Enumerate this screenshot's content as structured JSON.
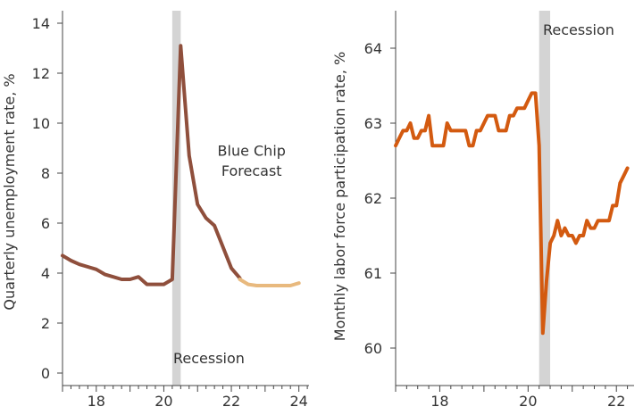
{
  "chart_data": [
    {
      "type": "line",
      "ylabel": "Quarterly unemployment rate, %",
      "xlim": [
        17,
        24.3
      ],
      "ylim": [
        -0.5,
        14.5
      ],
      "xticks": [
        18,
        20,
        22,
        24
      ],
      "yticks": [
        0,
        2,
        4,
        6,
        8,
        10,
        12,
        14
      ],
      "grid": false,
      "recession_band": {
        "x0": 20.25,
        "x1": 20.5,
        "label": "Recession",
        "color": "#d4d4d4"
      },
      "annotations": [
        {
          "text": "Blue Chip",
          "x": 22.6,
          "y": 8.7
        },
        {
          "text": "Forecast",
          "x": 22.6,
          "y": 7.9
        }
      ],
      "series": [
        {
          "color": "#8f4f3c",
          "x": [
            17.0,
            17.25,
            17.5,
            17.75,
            18.0,
            18.25,
            18.5,
            18.75,
            19.0,
            19.25,
            19.5,
            19.75,
            20.0,
            20.25,
            20.5,
            20.75,
            21.0,
            21.25,
            21.5,
            21.75,
            22.0,
            22.25
          ],
          "y": [
            4.7,
            4.5,
            4.35,
            4.25,
            4.15,
            3.95,
            3.85,
            3.75,
            3.75,
            3.85,
            3.55,
            3.55,
            3.55,
            3.75,
            13.1,
            8.7,
            6.75,
            6.2,
            5.9,
            5.05,
            4.2,
            3.8
          ]
        },
        {
          "color": "#e8b97e",
          "x": [
            22.25,
            22.5,
            22.75,
            23.0,
            23.25,
            23.5,
            23.75,
            24.0
          ],
          "y": [
            3.75,
            3.55,
            3.5,
            3.5,
            3.5,
            3.5,
            3.5,
            3.6
          ]
        }
      ]
    },
    {
      "type": "line",
      "ylabel": "Monthly labor force participation rate, %",
      "xlim": [
        17,
        22.4
      ],
      "ylim": [
        59.5,
        64.5
      ],
      "xticks": [
        18,
        20,
        22
      ],
      "yticks": [
        60,
        61,
        62,
        63,
        64
      ],
      "grid": false,
      "recession_band": {
        "x0": 20.25,
        "x1": 20.5,
        "label": "Recession",
        "color": "#d4d4d4"
      },
      "series": [
        {
          "color": "#d35a10",
          "x": [
            17.0,
            17.083,
            17.167,
            17.25,
            17.333,
            17.417,
            17.5,
            17.583,
            17.667,
            17.75,
            17.833,
            17.917,
            18.0,
            18.083,
            18.167,
            18.25,
            18.333,
            18.417,
            18.5,
            18.583,
            18.667,
            18.75,
            18.833,
            18.917,
            19.0,
            19.083,
            19.167,
            19.25,
            19.333,
            19.417,
            19.5,
            19.583,
            19.667,
            19.75,
            19.833,
            19.917,
            20.0,
            20.083,
            20.167,
            20.25,
            20.333,
            20.417,
            20.5,
            20.583,
            20.667,
            20.75,
            20.833,
            20.917,
            21.0,
            21.083,
            21.167,
            21.25,
            21.333,
            21.417,
            21.5,
            21.583,
            21.667,
            21.75,
            21.833,
            21.917,
            22.0,
            22.083,
            22.167,
            22.25
          ],
          "y": [
            62.7,
            62.8,
            62.9,
            62.9,
            63.0,
            62.8,
            62.8,
            62.9,
            62.9,
            63.1,
            62.7,
            62.7,
            62.7,
            62.7,
            63.0,
            62.9,
            62.9,
            62.9,
            62.9,
            62.9,
            62.7,
            62.7,
            62.9,
            62.9,
            63.0,
            63.1,
            63.1,
            63.1,
            62.9,
            62.9,
            62.9,
            63.1,
            63.1,
            63.2,
            63.2,
            63.2,
            63.3,
            63.4,
            63.4,
            62.7,
            60.2,
            60.9,
            61.4,
            61.5,
            61.7,
            61.5,
            61.6,
            61.5,
            61.5,
            61.4,
            61.5,
            61.5,
            61.7,
            61.6,
            61.6,
            61.7,
            61.7,
            61.7,
            61.7,
            61.9,
            61.9,
            62.2,
            62.3,
            62.4
          ]
        }
      ]
    }
  ]
}
